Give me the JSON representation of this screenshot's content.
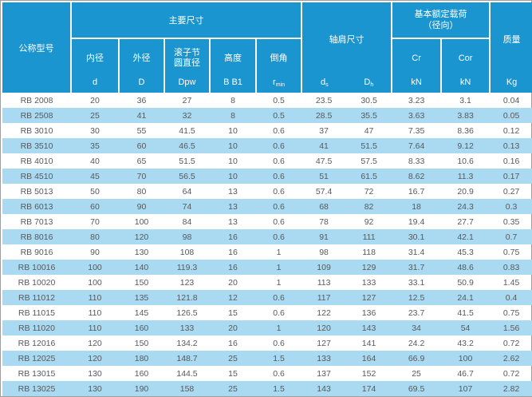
{
  "table": {
    "header": {
      "model": "公称型号",
      "main_group": "主要尺寸",
      "shoulder_group": "轴肩尺寸",
      "load_group_line1": "基本额定载荷",
      "load_group_line2": "（径向）",
      "mass_title": "质量",
      "mass_unit": "Kg",
      "cols": {
        "bore": {
          "name": "内径",
          "sym": "d"
        },
        "outer": {
          "name": "外径",
          "sym": "D"
        },
        "pitch": {
          "name1": "滚子节",
          "name2": "圆直径",
          "sym": "Dpw"
        },
        "height": {
          "name": "高度",
          "sym": "B B1"
        },
        "chamfer": {
          "name": "倒角",
          "sym": "r",
          "sub": "min"
        },
        "ds": {
          "sym": "d",
          "sub": "s"
        },
        "dh": {
          "sym": "D",
          "sub": "h"
        },
        "cr": {
          "name": "Cr",
          "unit": "kN"
        },
        "cor": {
          "name": "Cor",
          "unit": "kN"
        }
      }
    },
    "rows": [
      [
        "RB 2008",
        "20",
        "36",
        "27",
        "8",
        "0.5",
        "23.5",
        "30.5",
        "3.23",
        "3.1",
        "0.04"
      ],
      [
        "RB 2508",
        "25",
        "41",
        "32",
        "8",
        "0.5",
        "28.5",
        "35.5",
        "3.63",
        "3.83",
        "0.05"
      ],
      [
        "RB 3010",
        "30",
        "55",
        "41.5",
        "10",
        "0.6",
        "37",
        "47",
        "7.35",
        "8.36",
        "0.12"
      ],
      [
        "RB 3510",
        "35",
        "60",
        "46.5",
        "10",
        "0.6",
        "41",
        "51.5",
        "7.64",
        "9.12",
        "0.13"
      ],
      [
        "RB 4010",
        "40",
        "65",
        "51.5",
        "10",
        "0.6",
        "47.5",
        "57.5",
        "8.33",
        "10.6",
        "0.16"
      ],
      [
        "RB 4510",
        "45",
        "70",
        "56.5",
        "10",
        "0.6",
        "51",
        "61.5",
        "8.62",
        "11.3",
        "0.17"
      ],
      [
        "RB 5013",
        "50",
        "80",
        "64",
        "13",
        "0.6",
        "57.4",
        "72",
        "16.7",
        "20.9",
        "0.27"
      ],
      [
        "RB 6013",
        "60",
        "90",
        "74",
        "13",
        "0.6",
        "68",
        "82",
        "18",
        "24.3",
        "0.3"
      ],
      [
        "RB 7013",
        "70",
        "100",
        "84",
        "13",
        "0.6",
        "78",
        "92",
        "19.4",
        "27.7",
        "0.35"
      ],
      [
        "RB 8016",
        "80",
        "120",
        "98",
        "16",
        "0.6",
        "91",
        "111",
        "30.1",
        "42.1",
        "0.7"
      ],
      [
        "RB 9016",
        "90",
        "130",
        "108",
        "16",
        "1",
        "98",
        "118",
        "31.4",
        "45.3",
        "0.75"
      ],
      [
        "RB 10016",
        "100",
        "140",
        "119.3",
        "16",
        "1",
        "109",
        "129",
        "31.7",
        "48.6",
        "0.83"
      ],
      [
        "RB 10020",
        "100",
        "150",
        "123",
        "20",
        "1",
        "113",
        "133",
        "33.1",
        "50.9",
        "1.45"
      ],
      [
        "RB 11012",
        "110",
        "135",
        "121.8",
        "12",
        "0.6",
        "117",
        "127",
        "12.5",
        "24.1",
        "0.4"
      ],
      [
        "RB 11015",
        "110",
        "145",
        "126.5",
        "15",
        "0.6",
        "122",
        "136",
        "23.7",
        "41.5",
        "0.75"
      ],
      [
        "RB 11020",
        "110",
        "160",
        "133",
        "20",
        "1",
        "120",
        "143",
        "34",
        "54",
        "1.56"
      ],
      [
        "RB 12016",
        "120",
        "150",
        "134.2",
        "16",
        "0.6",
        "127",
        "141",
        "24.2",
        "43.2",
        "0.72"
      ],
      [
        "RB 12025",
        "120",
        "180",
        "148.7",
        "25",
        "1.5",
        "133",
        "164",
        "66.9",
        "100",
        "2.62"
      ],
      [
        "RB 13015",
        "130",
        "160",
        "144.5",
        "15",
        "0.6",
        "137",
        "152",
        "25",
        "46.7",
        "0.72"
      ],
      [
        "RB 13025",
        "130",
        "190",
        "158",
        "25",
        "1.5",
        "143",
        "174",
        "69.5",
        "107",
        "2.82"
      ]
    ]
  },
  "colors": {
    "header_bg": "#1b95d0",
    "row_alt": "#a9daf2",
    "body_text": "#58595b",
    "header_text": "#ffffff"
  }
}
